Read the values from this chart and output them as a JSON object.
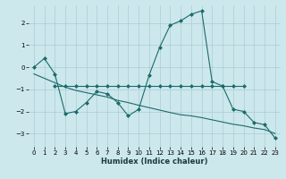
{
  "xlabel": "Humidex (Indice chaleur)",
  "bg_color": "#cce8ec",
  "grid_color": "#aaccd4",
  "line_color": "#1a6b6b",
  "xlim": [
    -0.5,
    23.5
  ],
  "ylim": [
    -3.6,
    2.8
  ],
  "xticks": [
    0,
    1,
    2,
    3,
    4,
    5,
    6,
    7,
    8,
    9,
    10,
    11,
    12,
    13,
    14,
    15,
    16,
    17,
    18,
    19,
    20,
    21,
    22,
    23
  ],
  "yticks": [
    -3,
    -2,
    -1,
    0,
    1,
    2
  ],
  "series": [
    {
      "x": [
        0,
        1,
        2,
        3,
        4,
        5,
        6,
        7,
        8,
        9,
        10,
        11,
        12,
        13,
        14,
        15,
        16,
        17,
        18,
        19,
        20,
        21,
        22,
        23
      ],
      "y": [
        0.0,
        0.4,
        -0.3,
        -2.1,
        -2.0,
        -1.6,
        -1.1,
        -1.2,
        -1.6,
        -2.2,
        -1.9,
        -0.35,
        0.9,
        1.9,
        2.1,
        2.4,
        2.55,
        -0.65,
        -0.85,
        -1.9,
        -2.0,
        -2.5,
        -2.6,
        -3.2
      ],
      "marker": "D",
      "markersize": 2.0,
      "linewidth": 0.8
    },
    {
      "x": [
        2,
        3,
        4,
        5,
        6,
        7,
        8,
        9,
        10,
        11,
        12,
        13,
        14,
        15,
        16,
        17,
        18,
        19,
        20
      ],
      "y": [
        -0.85,
        -0.85,
        -0.85,
        -0.85,
        -0.85,
        -0.85,
        -0.85,
        -0.85,
        -0.85,
        -0.85,
        -0.85,
        -0.85,
        -0.85,
        -0.85,
        -0.85,
        -0.85,
        -0.85,
        -0.85,
        -0.85
      ],
      "marker": "D",
      "markersize": 2.0,
      "linewidth": 0.8
    },
    {
      "x": [
        0,
        1,
        2,
        3,
        4,
        5,
        6,
        7,
        8,
        9,
        10,
        11,
        12,
        13,
        14,
        15,
        16,
        17,
        18,
        19,
        20,
        21,
        22,
        23
      ],
      "y": [
        -0.3,
        -0.5,
        -0.7,
        -0.9,
        -1.05,
        -1.15,
        -1.25,
        -1.35,
        -1.5,
        -1.6,
        -1.72,
        -1.83,
        -1.94,
        -2.05,
        -2.15,
        -2.2,
        -2.28,
        -2.38,
        -2.48,
        -2.58,
        -2.65,
        -2.75,
        -2.82,
        -3.0
      ],
      "marker": null,
      "markersize": 0,
      "linewidth": 0.8
    }
  ]
}
